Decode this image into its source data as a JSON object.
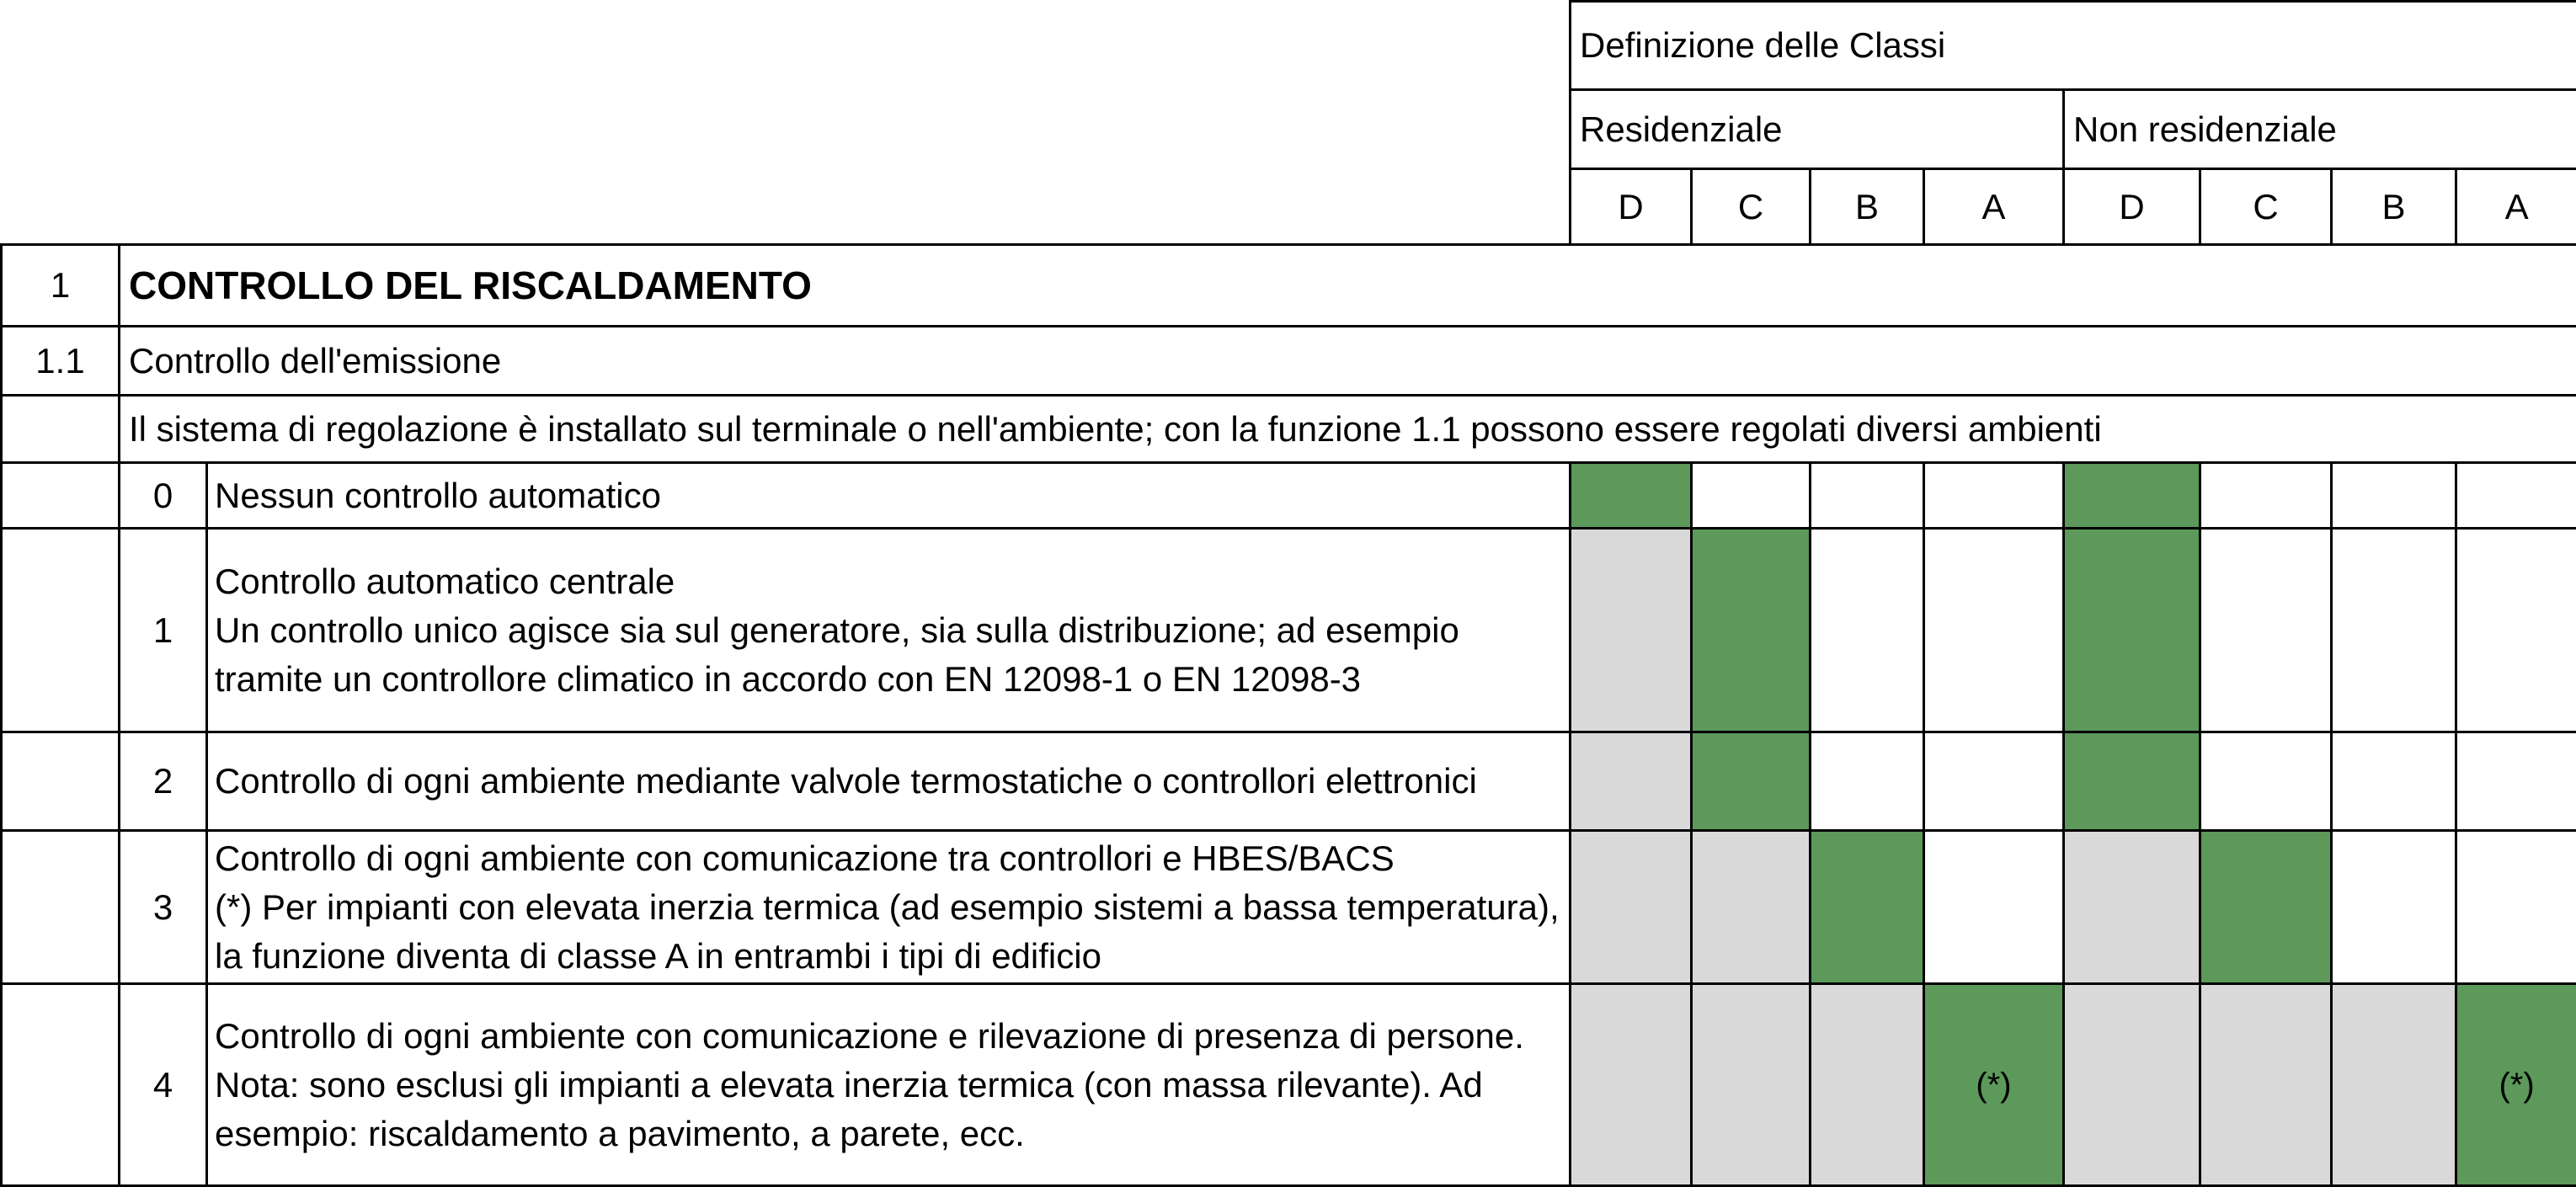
{
  "header": {
    "definition_label": "Definizione delle Classi",
    "residential_label": "Residenziale",
    "non_residential_label": "Non residenziale",
    "classes": [
      "D",
      "C",
      "B",
      "A",
      "D",
      "C",
      "B",
      "A"
    ]
  },
  "section": {
    "number": "1",
    "title": "CONTROLLO DEL RISCALDAMENTO"
  },
  "subsection": {
    "number": "1.1",
    "title": "Controllo dell'emissione",
    "description": "Il sistema di regolazione è installato sul terminale o nell'ambiente; con la funzione 1.1 possono essere regolati diversi ambienti"
  },
  "colors": {
    "green": "#5c995b",
    "gray": "#d9d9d9",
    "white": "#ffffff"
  },
  "rows": [
    {
      "number": "0",
      "lines": [
        "Nessun controllo automatico"
      ],
      "cells": [
        "green",
        "white",
        "white",
        "white",
        "green",
        "white",
        "white",
        "white"
      ],
      "marks": [
        "",
        "",
        "",
        "",
        "",
        "",
        "",
        ""
      ]
    },
    {
      "number": "1",
      "lines": [
        "Controllo automatico centrale",
        "Un controllo unico agisce sia sul generatore, sia sulla distribuzione; ad esempio tramite un controllore climatico in accordo con EN 12098-1 o EN 12098-3"
      ],
      "cells": [
        "gray",
        "green",
        "white",
        "white",
        "green",
        "white",
        "white",
        "white"
      ],
      "marks": [
        "",
        "",
        "",
        "",
        "",
        "",
        "",
        ""
      ]
    },
    {
      "number": "2",
      "lines": [
        "Controllo di ogni ambiente mediante valvole termostatiche o controllori elettronici"
      ],
      "cells": [
        "gray",
        "green",
        "white",
        "white",
        "green",
        "white",
        "white",
        "white"
      ],
      "marks": [
        "",
        "",
        "",
        "",
        "",
        "",
        "",
        ""
      ]
    },
    {
      "number": "3",
      "lines": [
        "Controllo di ogni ambiente con comunicazione tra controllori e HBES/BACS",
        "(*) Per impianti con elevata inerzia termica (ad esempio sistemi a bassa temperatura), la funzione diventa di classe A in entrambi i tipi di edificio"
      ],
      "cells": [
        "gray",
        "gray",
        "green",
        "white",
        "gray",
        "green",
        "white",
        "white"
      ],
      "marks": [
        "",
        "",
        "",
        "",
        "",
        "",
        "",
        ""
      ]
    },
    {
      "number": "4",
      "lines": [
        "Controllo di ogni ambiente con comunicazione e rilevazione di presenza di persone.",
        "Nota: sono esclusi gli impianti a elevata inerzia termica (con massa rilevante). Ad esempio: riscaldamento a pavimento, a parete, ecc."
      ],
      "cells": [
        "gray",
        "gray",
        "gray",
        "green",
        "gray",
        "gray",
        "gray",
        "green"
      ],
      "marks": [
        "",
        "",
        "",
        "(*)",
        "",
        "",
        "",
        "(*)"
      ]
    }
  ]
}
